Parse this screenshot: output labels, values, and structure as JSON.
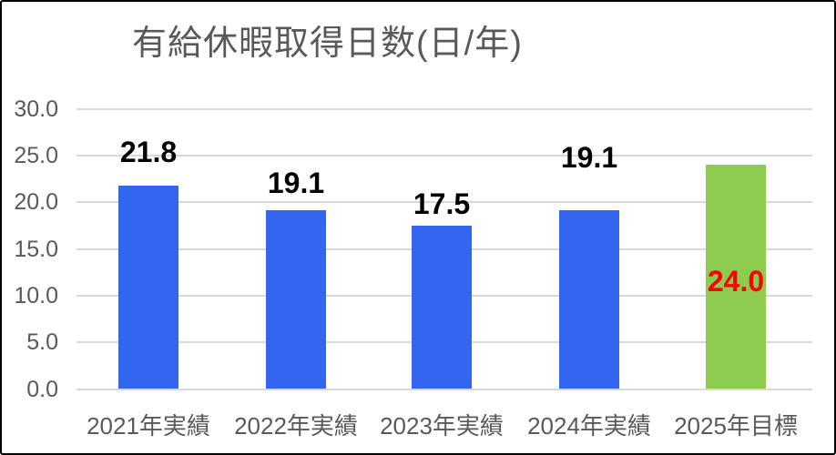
{
  "chart_data": {
    "type": "bar",
    "title": "有給休暇取得日数(日/年)",
    "categories": [
      "2021年実績",
      "2022年実績",
      "2023年実績",
      "2024年実績",
      "2025年目標"
    ],
    "values": [
      21.8,
      19.1,
      17.5,
      19.1,
      24.0
    ],
    "value_labels": [
      "21.8",
      "19.1",
      "17.5",
      "19.1",
      "24.0"
    ],
    "ylim": [
      0,
      30
    ],
    "ytick_interval": 5,
    "ytick_labels": [
      "30.0",
      "25.0",
      "20.0",
      "15.0",
      "10.0",
      "5.0",
      "0.0"
    ],
    "grid": "horizontal",
    "legend_position": "none",
    "bar_colors": [
      "#3366EF",
      "#3366EF",
      "#3366EF",
      "#3366EF",
      "#8DCB4E"
    ],
    "value_label_colors": [
      "#000000",
      "#000000",
      "#000000",
      "#000000",
      "#FF0000"
    ]
  },
  "colors": {
    "background": "#FFFFFF",
    "frame_border": "#000000",
    "gridline": "#D8D8D8",
    "axis_text": "#595959",
    "title_text": "#595959"
  }
}
